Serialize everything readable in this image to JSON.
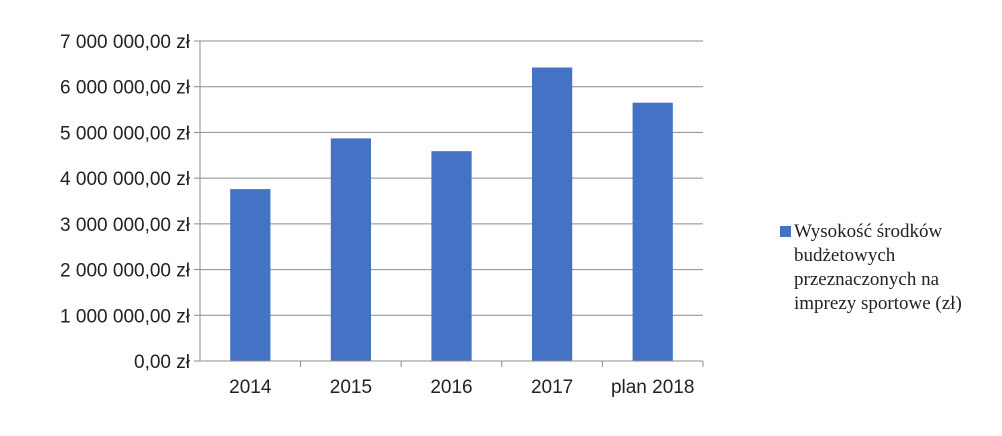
{
  "chart_data": {
    "type": "bar",
    "categories": [
      "2014",
      "2015",
      "2016",
      "2017",
      "plan 2018"
    ],
    "series": [
      {
        "name": "Wysokość środków budżetowych przeznaczonych na imprezy sportowe (zł)",
        "values": [
          3760000,
          4870000,
          4590000,
          6420000,
          5650000
        ],
        "color": "#4472c4"
      }
    ],
    "yticks": [
      "0,00 zł",
      "1 000 000,00 zł",
      "2 000 000,00 zł",
      "3 000 000,00 zł",
      "4 000 000,00 zł",
      "5 000 000,00 zł",
      "6 000 000,00 zł",
      "7 000 000,00 zł"
    ],
    "ylim": [
      0,
      7000000
    ],
    "grid": true,
    "legend_position": "right",
    "title": "",
    "xlabel": "",
    "ylabel": ""
  }
}
